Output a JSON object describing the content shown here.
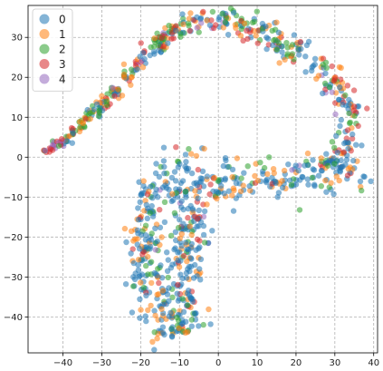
{
  "chart_data": {
    "type": "scatter",
    "title": "",
    "xlabel": "",
    "ylabel": "",
    "xlim": [
      -49,
      41
    ],
    "ylim": [
      -49,
      38
    ],
    "grid": true,
    "legend_position": "top-left",
    "xticks": [
      -40,
      -30,
      -20,
      -10,
      0,
      10,
      20,
      30,
      40
    ],
    "yticks": [
      -40,
      -30,
      -20,
      -10,
      0,
      10,
      20,
      30
    ],
    "classes": [
      {
        "name": "0",
        "color": "#1f77b4"
      },
      {
        "name": "1",
        "color": "#ff7f0e"
      },
      {
        "name": "2",
        "color": "#2ca02c"
      },
      {
        "name": "3",
        "color": "#d62728"
      },
      {
        "name": "4",
        "color": "#9467bd"
      }
    ],
    "arm_path": [
      [
        -44.5,
        1
      ],
      [
        -40,
        4
      ],
      [
        -35,
        8
      ],
      [
        -30,
        13
      ],
      [
        -25,
        18
      ],
      [
        -20,
        24
      ],
      [
        -15,
        29
      ],
      [
        -10,
        32
      ],
      [
        -5,
        34
      ],
      [
        0,
        35
      ],
      [
        5,
        34
      ],
      [
        10,
        32
      ],
      [
        15,
        29
      ],
      [
        20,
        26
      ],
      [
        25,
        23
      ],
      [
        30,
        19
      ],
      [
        33,
        14
      ],
      [
        34,
        8
      ],
      [
        33.5,
        2
      ],
      [
        31,
        -3
      ]
    ],
    "band_path": [
      [
        35,
        0
      ],
      [
        30,
        -3
      ],
      [
        22,
        -4
      ],
      [
        15,
        -5
      ],
      [
        8,
        -5
      ],
      [
        2,
        -6
      ],
      [
        -5,
        -5
      ],
      [
        -10,
        -6
      ],
      [
        -15,
        -8
      ],
      [
        -18,
        -13
      ],
      [
        -19,
        -20
      ],
      [
        -18,
        -28
      ],
      [
        -16,
        -35
      ],
      [
        -13,
        -40
      ],
      [
        -10,
        -44
      ],
      [
        -9,
        -40
      ],
      [
        -8,
        -32
      ],
      [
        -9,
        -25
      ],
      [
        -7,
        -18
      ],
      [
        -5,
        -13
      ]
    ]
  }
}
